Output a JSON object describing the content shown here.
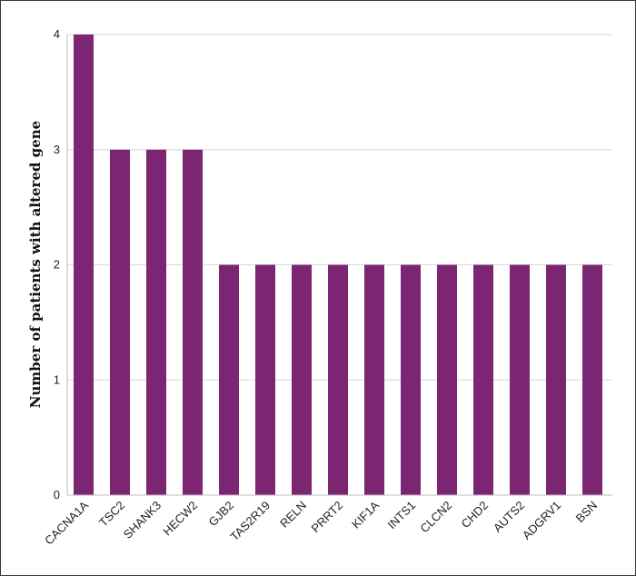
{
  "chart_data": {
    "type": "bar",
    "title": "",
    "xlabel": "",
    "ylabel": "Number of patients with altered gene",
    "categories": [
      "CACNA1A",
      "TSC2",
      "SHANK3",
      "HECW2",
      "GJB2",
      "TAS2R19",
      "RELN",
      "PRRT2",
      "KIF1A",
      "INTS1",
      "CLCN2",
      "CHD2",
      "AUTS2",
      "ADGRV1",
      "BSN"
    ],
    "values": [
      4,
      3,
      3,
      3,
      2,
      2,
      2,
      2,
      2,
      2,
      2,
      2,
      2,
      2,
      2
    ],
    "ylim": [
      0,
      4
    ],
    "yticks": [
      0,
      1,
      2,
      3,
      4
    ],
    "grid": true,
    "legend": "none",
    "bar_color": "#7b2573",
    "grid_color": "#d6d6d6",
    "axis_color": "#bdbdbd"
  }
}
